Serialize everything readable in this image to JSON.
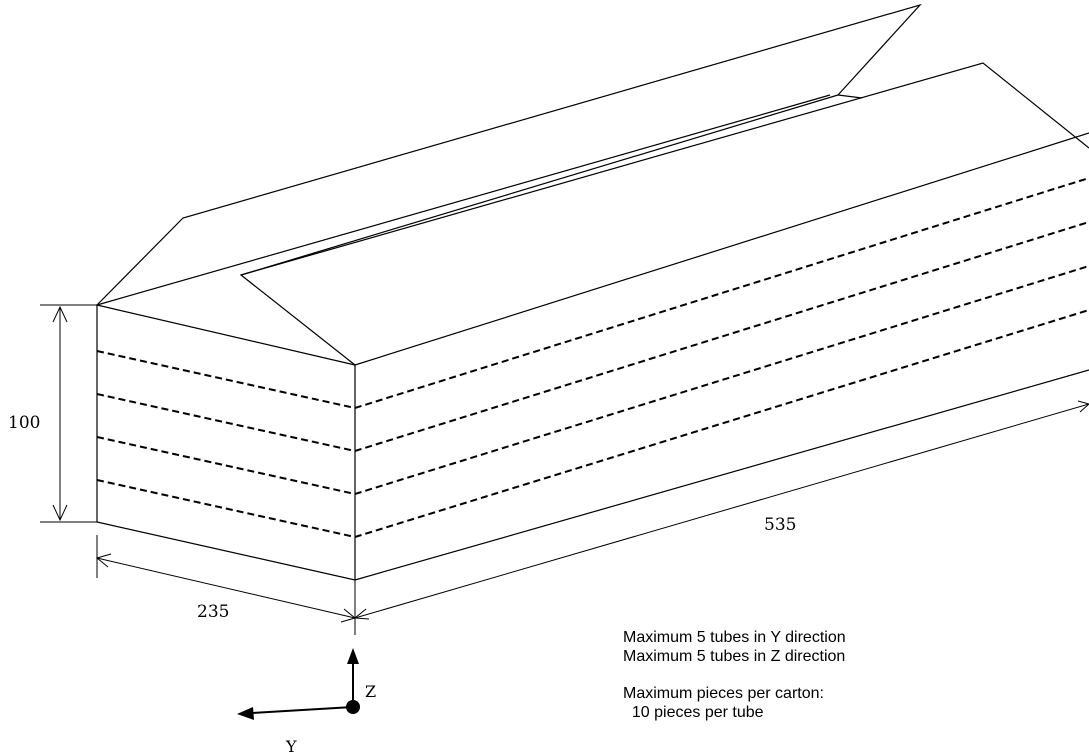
{
  "dimensions": {
    "height": "100",
    "width": "235",
    "length": "535"
  },
  "axes": {
    "z_label": "Z",
    "y_label": "Y"
  },
  "notes": {
    "line1": "Maximum 5 tubes in Y direction",
    "line2": "Maximum 5 tubes in Z direction",
    "line3": "Maximum pieces per carton:",
    "line4": "  10 pieces per tube"
  },
  "colors": {
    "line": "#000000",
    "background": "#ffffff"
  }
}
